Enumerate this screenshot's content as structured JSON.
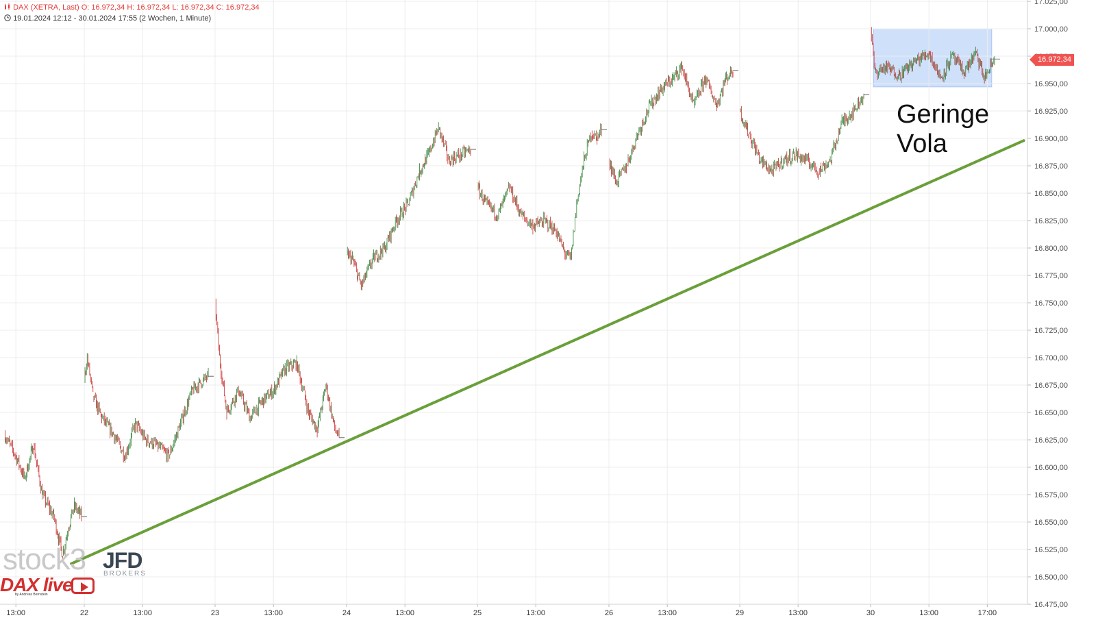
{
  "header": {
    "line1": "DAX (XETRA, Last)  O: 16.972,34  H: 16.972,34  L: 16.972,34  C: 16.972,34",
    "line2": "19.01.2024 12:12 - 30.01.2024 17:55   (2 Wochen, 1 Minute)",
    "chart_icon": "candlestick-icon",
    "clock_icon": "clock-icon"
  },
  "annotation": {
    "line1": "Geringe",
    "line2": "Vola"
  },
  "last_price_label": "16.972,34",
  "watermarks": {
    "stock3": "stock3",
    "jfd": "JFD",
    "brokers": "BROKERS",
    "dax_live": "DAX live",
    "dax_live_sub": "by Andreas Bernstein"
  },
  "colors": {
    "up": "#2e7d32",
    "down": "#c62828",
    "trendline": "#6a9f3a",
    "box_fill": "#cfe0fb",
    "box_stroke": "#a9c4f2",
    "grid": "#ececec",
    "price_badge": "#ef5350"
  },
  "chart_data": {
    "type": "line",
    "title": "DAX (XETRA, Last)",
    "ohlc_last": {
      "open": 16972.34,
      "high": 16972.34,
      "low": 16972.34,
      "close": 16972.34
    },
    "y_axis": {
      "min": 16475,
      "max": 17025,
      "ticks": [
        17025,
        17000,
        16975,
        16950,
        16925,
        16900,
        16875,
        16850,
        16825,
        16800,
        16775,
        16750,
        16725,
        16700,
        16675,
        16650,
        16625,
        16600,
        16575,
        16550,
        16525,
        16500,
        16475
      ],
      "tick_labels": [
        "17.025,00",
        "17.000,00",
        "16.975,00",
        "16.950,00",
        "16.925,00",
        "16.900,00",
        "16.875,00",
        "16.850,00",
        "16.825,00",
        "16.800,00",
        "16.775,00",
        "16.750,00",
        "16.725,00",
        "16.700,00",
        "16.675,00",
        "16.650,00",
        "16.625,00",
        "16.600,00",
        "16.575,00",
        "16.550,00",
        "16.525,00",
        "16.500,00",
        "16.475,00"
      ]
    },
    "x_axis": {
      "unit": "trading hours (09:00-17:30 per day)",
      "ticks": [
        {
          "label": "13:00",
          "day": 0,
          "hour": 13
        },
        {
          "label": "22",
          "day": 1,
          "hour": 9
        },
        {
          "label": "13:00",
          "day": 1,
          "hour": 13
        },
        {
          "label": "23",
          "day": 2,
          "hour": 9
        },
        {
          "label": "13:00",
          "day": 2,
          "hour": 13
        },
        {
          "label": "24",
          "day": 3,
          "hour": 9
        },
        {
          "label": "13:00",
          "day": 3,
          "hour": 13
        },
        {
          "label": "25",
          "day": 4,
          "hour": 9
        },
        {
          "label": "13:00",
          "day": 4,
          "hour": 13
        },
        {
          "label": "26",
          "day": 5,
          "hour": 9
        },
        {
          "label": "13:00",
          "day": 5,
          "hour": 13
        },
        {
          "label": "29",
          "day": 6,
          "hour": 9
        },
        {
          "label": "13:00",
          "day": 6,
          "hour": 13
        },
        {
          "label": "30",
          "day": 7,
          "hour": 9
        },
        {
          "label": "13:00",
          "day": 7,
          "hour": 13
        },
        {
          "label": "17:00",
          "day": 7,
          "hour": 17
        }
      ]
    },
    "series": [
      {
        "type": "candlestick_1min_path",
        "points": [
          {
            "day": 0,
            "hour": 12.2,
            "price": 16630
          },
          {
            "day": 0,
            "hour": 13.0,
            "price": 16610
          },
          {
            "day": 0,
            "hour": 13.6,
            "price": 16590
          },
          {
            "day": 0,
            "hour": 14.2,
            "price": 16620
          },
          {
            "day": 0,
            "hour": 14.8,
            "price": 16575
          },
          {
            "day": 0,
            "hour": 15.6,
            "price": 16555
          },
          {
            "day": 0,
            "hour": 16.2,
            "price": 16520
          },
          {
            "day": 0,
            "hour": 16.6,
            "price": 16545
          },
          {
            "day": 0,
            "hour": 17.0,
            "price": 16565
          },
          {
            "day": 0,
            "hour": 17.5,
            "price": 16555
          },
          {
            "day": 1,
            "hour": 9.0,
            "price": 16680
          },
          {
            "day": 1,
            "hour": 9.2,
            "price": 16700
          },
          {
            "day": 1,
            "hour": 9.6,
            "price": 16665
          },
          {
            "day": 1,
            "hour": 10.2,
            "price": 16645
          },
          {
            "day": 1,
            "hour": 11.0,
            "price": 16630
          },
          {
            "day": 1,
            "hour": 11.8,
            "price": 16610
          },
          {
            "day": 1,
            "hour": 12.5,
            "price": 16640
          },
          {
            "day": 1,
            "hour": 13.2,
            "price": 16625
          },
          {
            "day": 1,
            "hour": 14.0,
            "price": 16620
          },
          {
            "day": 1,
            "hour": 14.8,
            "price": 16610
          },
          {
            "day": 1,
            "hour": 15.6,
            "price": 16640
          },
          {
            "day": 1,
            "hour": 16.4,
            "price": 16670
          },
          {
            "day": 1,
            "hour": 17.2,
            "price": 16680
          },
          {
            "day": 1,
            "hour": 17.5,
            "price": 16683
          },
          {
            "day": 2,
            "hour": 9.0,
            "price": 16750
          },
          {
            "day": 2,
            "hour": 9.3,
            "price": 16700
          },
          {
            "day": 2,
            "hour": 9.8,
            "price": 16650
          },
          {
            "day": 2,
            "hour": 10.6,
            "price": 16670
          },
          {
            "day": 2,
            "hour": 11.4,
            "price": 16645
          },
          {
            "day": 2,
            "hour": 12.2,
            "price": 16660
          },
          {
            "day": 2,
            "hour": 13.0,
            "price": 16670
          },
          {
            "day": 2,
            "hour": 13.8,
            "price": 16690
          },
          {
            "day": 2,
            "hour": 14.6,
            "price": 16695
          },
          {
            "day": 2,
            "hour": 15.4,
            "price": 16650
          },
          {
            "day": 2,
            "hour": 16.0,
            "price": 16635
          },
          {
            "day": 2,
            "hour": 16.6,
            "price": 16675
          },
          {
            "day": 2,
            "hour": 17.2,
            "price": 16635
          },
          {
            "day": 2,
            "hour": 17.5,
            "price": 16627
          },
          {
            "day": 3,
            "hour": 9.0,
            "price": 16795
          },
          {
            "day": 3,
            "hour": 9.4,
            "price": 16790
          },
          {
            "day": 3,
            "hour": 10.0,
            "price": 16765
          },
          {
            "day": 3,
            "hour": 10.8,
            "price": 16790
          },
          {
            "day": 3,
            "hour": 11.6,
            "price": 16800
          },
          {
            "day": 3,
            "hour": 12.4,
            "price": 16825
          },
          {
            "day": 3,
            "hour": 13.2,
            "price": 16840
          },
          {
            "day": 3,
            "hour": 14.0,
            "price": 16870
          },
          {
            "day": 3,
            "hour": 14.6,
            "price": 16885
          },
          {
            "day": 3,
            "hour": 15.3,
            "price": 16910
          },
          {
            "day": 3,
            "hour": 16.0,
            "price": 16880
          },
          {
            "day": 3,
            "hour": 16.8,
            "price": 16885
          },
          {
            "day": 3,
            "hour": 17.5,
            "price": 16890
          },
          {
            "day": 4,
            "hour": 9.0,
            "price": 16855
          },
          {
            "day": 4,
            "hour": 9.6,
            "price": 16840
          },
          {
            "day": 4,
            "hour": 10.4,
            "price": 16830
          },
          {
            "day": 4,
            "hour": 11.2,
            "price": 16855
          },
          {
            "day": 4,
            "hour": 12.0,
            "price": 16830
          },
          {
            "day": 4,
            "hour": 12.8,
            "price": 16820
          },
          {
            "day": 4,
            "hour": 13.6,
            "price": 16825
          },
          {
            "day": 4,
            "hour": 14.4,
            "price": 16815
          },
          {
            "day": 4,
            "hour": 15.0,
            "price": 16795
          },
          {
            "day": 4,
            "hour": 15.4,
            "price": 16790
          },
          {
            "day": 4,
            "hour": 15.8,
            "price": 16840
          },
          {
            "day": 4,
            "hour": 16.3,
            "price": 16880
          },
          {
            "day": 4,
            "hour": 16.8,
            "price": 16905
          },
          {
            "day": 4,
            "hour": 17.2,
            "price": 16900
          },
          {
            "day": 4,
            "hour": 17.5,
            "price": 16908
          },
          {
            "day": 5,
            "hour": 9.0,
            "price": 16880
          },
          {
            "day": 5,
            "hour": 9.5,
            "price": 16860
          },
          {
            "day": 5,
            "hour": 10.2,
            "price": 16875
          },
          {
            "day": 5,
            "hour": 11.0,
            "price": 16905
          },
          {
            "day": 5,
            "hour": 11.8,
            "price": 16930
          },
          {
            "day": 5,
            "hour": 12.6,
            "price": 16945
          },
          {
            "day": 5,
            "hour": 13.4,
            "price": 16955
          },
          {
            "day": 5,
            "hour": 14.0,
            "price": 16965
          },
          {
            "day": 5,
            "hour": 14.8,
            "price": 16930
          },
          {
            "day": 5,
            "hour": 15.6,
            "price": 16955
          },
          {
            "day": 5,
            "hour": 16.4,
            "price": 16930
          },
          {
            "day": 5,
            "hour": 17.0,
            "price": 16955
          },
          {
            "day": 5,
            "hour": 17.5,
            "price": 16962
          },
          {
            "day": 6,
            "hour": 9.0,
            "price": 16925
          },
          {
            "day": 6,
            "hour": 9.6,
            "price": 16905
          },
          {
            "day": 6,
            "hour": 10.4,
            "price": 16880
          },
          {
            "day": 6,
            "hour": 11.2,
            "price": 16870
          },
          {
            "day": 6,
            "hour": 12.0,
            "price": 16880
          },
          {
            "day": 6,
            "hour": 12.8,
            "price": 16885
          },
          {
            "day": 6,
            "hour": 13.6,
            "price": 16880
          },
          {
            "day": 6,
            "hour": 14.4,
            "price": 16870
          },
          {
            "day": 6,
            "hour": 15.2,
            "price": 16880
          },
          {
            "day": 6,
            "hour": 16.0,
            "price": 16915
          },
          {
            "day": 6,
            "hour": 16.8,
            "price": 16925
          },
          {
            "day": 6,
            "hour": 17.5,
            "price": 16940
          },
          {
            "day": 7,
            "hour": 9.0,
            "price": 16998
          },
          {
            "day": 7,
            "hour": 9.3,
            "price": 16960
          },
          {
            "day": 7,
            "hour": 10.0,
            "price": 16965
          },
          {
            "day": 7,
            "hour": 11.0,
            "price": 16958
          },
          {
            "day": 7,
            "hour": 12.0,
            "price": 16970
          },
          {
            "day": 7,
            "hour": 13.0,
            "price": 16978
          },
          {
            "day": 7,
            "hour": 13.8,
            "price": 16955
          },
          {
            "day": 7,
            "hour": 14.6,
            "price": 16975
          },
          {
            "day": 7,
            "hour": 15.4,
            "price": 16960
          },
          {
            "day": 7,
            "hour": 16.2,
            "price": 16978
          },
          {
            "day": 7,
            "hour": 16.8,
            "price": 16955
          },
          {
            "day": 7,
            "hour": 17.5,
            "price": 16972
          }
        ]
      }
    ],
    "trendline": {
      "start": {
        "day": 0,
        "hour": 16.8,
        "price": 16512
      },
      "end": {
        "day": 7,
        "hour": 19.5,
        "price": 16898
      }
    },
    "range_box": {
      "x_start": {
        "day": 7,
        "hour": 9.2
      },
      "x_end": {
        "day": 7,
        "hour": 17.3
      },
      "y_low": 16947,
      "y_high": 17000
    },
    "last_price": 16972.34,
    "grid": true,
    "legend": "none"
  }
}
